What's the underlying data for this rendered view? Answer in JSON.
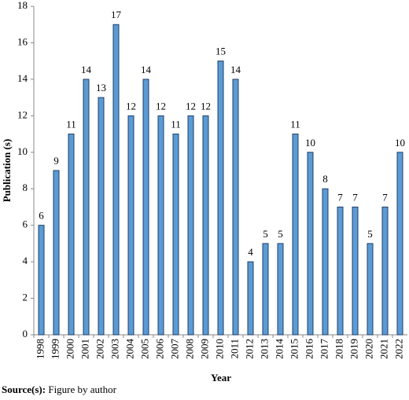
{
  "chart_data": {
    "type": "bar",
    "y_label": "Publication (s)",
    "x_label": "Year",
    "source_label": "Source(s):",
    "source_text": "Figure by author",
    "categories": [
      "1998",
      "1999",
      "2000",
      "2001",
      "2002",
      "2003",
      "2004",
      "2005",
      "2006",
      "2007",
      "2008",
      "2009",
      "2010",
      "2011",
      "2012",
      "2013",
      "2014",
      "2015",
      "2016",
      "2017",
      "2018",
      "2019",
      "2020",
      "2021",
      "2022"
    ],
    "values": [
      6,
      9,
      11,
      14,
      13,
      17,
      12,
      14,
      12,
      11,
      12,
      12,
      15,
      14,
      4,
      5,
      5,
      11,
      10,
      8,
      7,
      7,
      5,
      7,
      10
    ],
    "color": "#5b9bd5",
    "ylim": [
      0,
      18
    ],
    "yticks": [
      0,
      2,
      4,
      6,
      8,
      10,
      12,
      14,
      16,
      18
    ],
    "grid": false
  }
}
